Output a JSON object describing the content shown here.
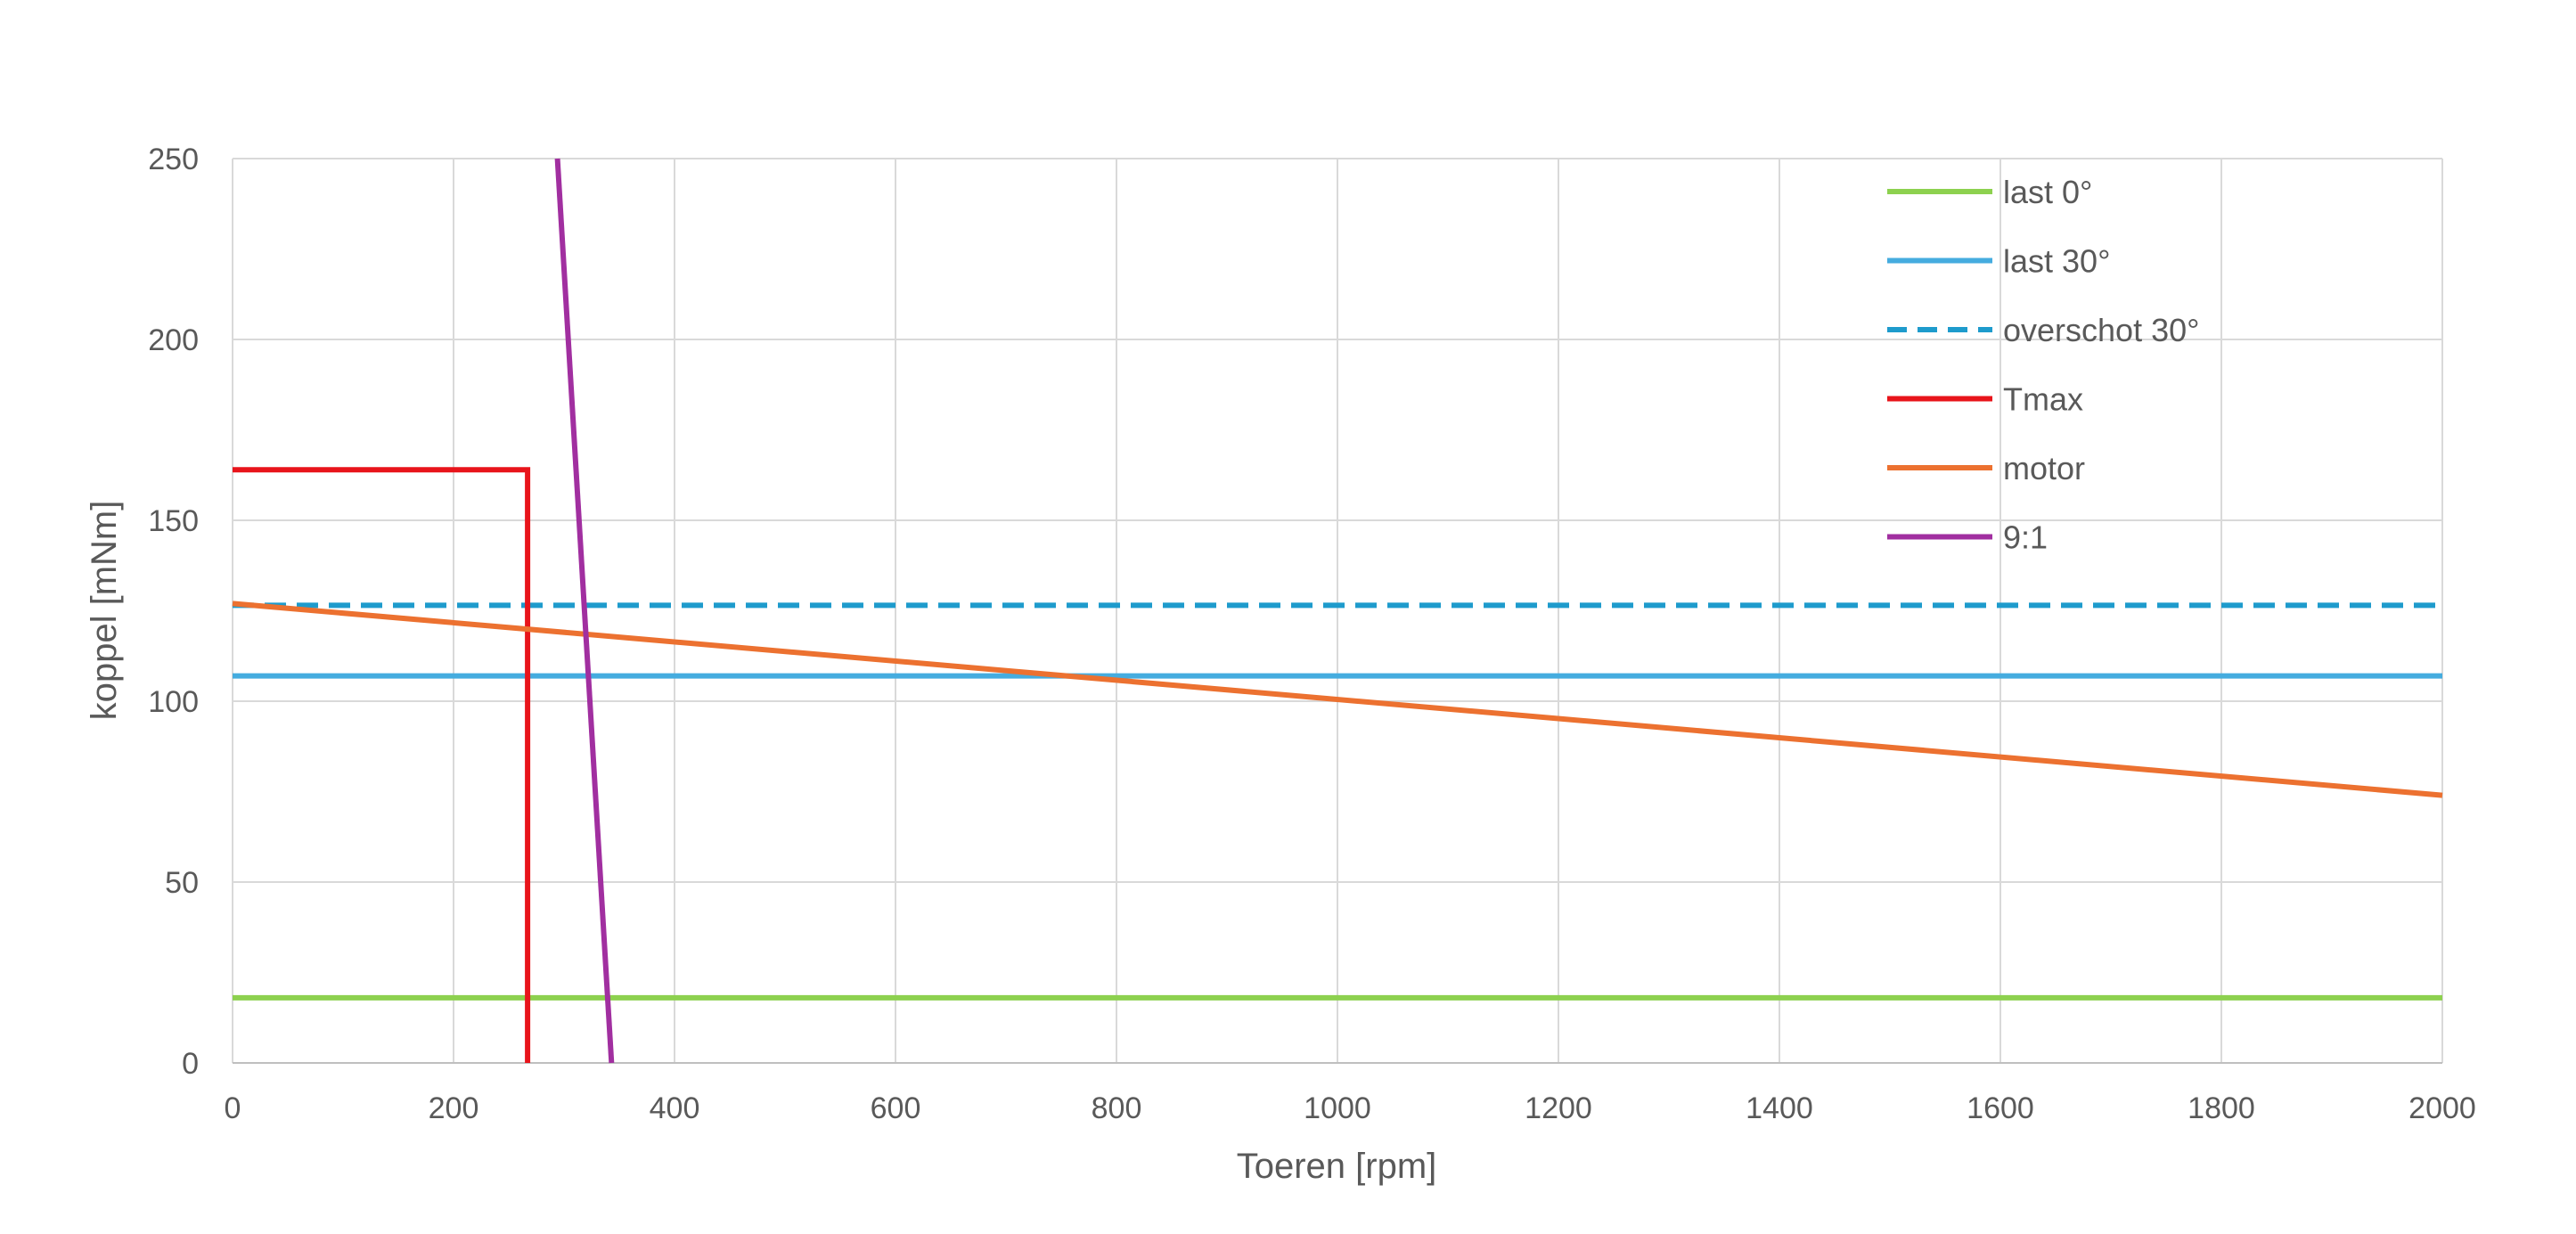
{
  "chart_data": {
    "type": "line",
    "title": "",
    "xlabel": "Toeren [rpm]",
    "ylabel": "koppel [mNm]",
    "xlim": [
      0,
      2000
    ],
    "ylim": [
      0,
      250
    ],
    "x_ticks": [
      0,
      200,
      400,
      600,
      800,
      1000,
      1200,
      1400,
      1600,
      1800,
      2000
    ],
    "y_ticks": [
      0,
      50,
      100,
      150,
      200,
      250
    ],
    "grid": true,
    "legend_position": "top-right",
    "series": [
      {
        "name": "last 0°",
        "color": "#8DD14F",
        "dash": false,
        "points": [
          [
            0,
            18
          ],
          [
            2000,
            18
          ]
        ]
      },
      {
        "name": "last 30°",
        "color": "#45ACDF",
        "dash": false,
        "points": [
          [
            0,
            107
          ],
          [
            2000,
            107
          ]
        ]
      },
      {
        "name": "overschot 30°",
        "color": "#1E9BCC",
        "dash": true,
        "points": [
          [
            0,
            126.5
          ],
          [
            2000,
            126.5
          ]
        ]
      },
      {
        "name": "Tmax",
        "color": "#E8141B",
        "dash": false,
        "points": [
          [
            0,
            164
          ],
          [
            267,
            164
          ],
          [
            267,
            0
          ]
        ]
      },
      {
        "name": "motor",
        "color": "#EC7130",
        "dash": false,
        "points": [
          [
            0,
            127
          ],
          [
            2000,
            74
          ]
        ]
      },
      {
        "name": "9:1",
        "color": "#A12FA0",
        "dash": false,
        "points": [
          [
            294,
            250
          ],
          [
            343,
            0
          ]
        ]
      }
    ]
  }
}
